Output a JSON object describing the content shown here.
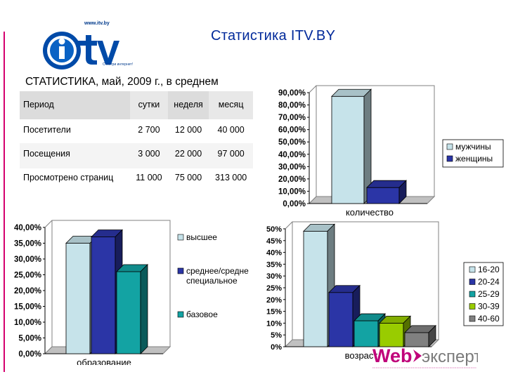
{
  "header": {
    "title": "Статистика  ITV.BY",
    "logo_url": "www.itv.by",
    "logo_slogan": "С-мотри интернет!",
    "logo_text": "iTV.BY"
  },
  "table": {
    "title": "СТАТИСТИКА, май, 2009 г., в среднем",
    "columns": [
      "Период",
      "сутки",
      "неделя",
      "месяц"
    ],
    "rows": [
      {
        "label": "Посетители",
        "values": [
          "2 700",
          "12 000",
          "40 000"
        ]
      },
      {
        "label": "Посещения",
        "values": [
          "3 000",
          "22 000",
          "97 000"
        ]
      },
      {
        "label": "Просмотрено страниц",
        "values": [
          "11 000",
          "75 000",
          "313 000"
        ]
      }
    ]
  },
  "chart_data": [
    {
      "type": "bar",
      "xlabel": "количество",
      "ylim": [
        0,
        90
      ],
      "yticks": [
        "0,00%",
        "10,00%",
        "20,00%",
        "30,00%",
        "40,00%",
        "50,00%",
        "60,00%",
        "70,00%",
        "80,00%",
        "90,00%"
      ],
      "legend_position": "right",
      "series": [
        {
          "name": "мужчины",
          "value": 87,
          "color": "#c6e3ea"
        },
        {
          "name": "женщины",
          "value": 13,
          "color": "#2b35a6"
        }
      ]
    },
    {
      "type": "bar",
      "xlabel": "образование",
      "ylim": [
        0,
        40
      ],
      "yticks": [
        "0,00%",
        "5,00%",
        "10,00%",
        "15,00%",
        "20,00%",
        "25,00%",
        "30,00%",
        "35,00%",
        "40,00%"
      ],
      "legend_position": "right",
      "series": [
        {
          "name": "высшее",
          "value": 35,
          "color": "#c6e3ea"
        },
        {
          "name": "среднее/средне специальное",
          "legend_lines": [
            "среднее/средне",
            "специальное"
          ],
          "value": 37,
          "color": "#2b35a6"
        },
        {
          "name": "базовое",
          "value": 26,
          "color": "#13a3a3"
        }
      ]
    },
    {
      "type": "bar",
      "xlabel": "возраст",
      "ylim": [
        0,
        50
      ],
      "yticks": [
        "0%",
        "5%",
        "10%",
        "15%",
        "20%",
        "25%",
        "30%",
        "35%",
        "40%",
        "45%",
        "50%"
      ],
      "legend_position": "right",
      "series": [
        {
          "name": "16-20",
          "value": 49,
          "color": "#c6e3ea"
        },
        {
          "name": "20-24",
          "value": 23,
          "color": "#2b35a6"
        },
        {
          "name": "25-29",
          "value": 11,
          "color": "#13a3a3"
        },
        {
          "name": "30-39",
          "value": 10,
          "color": "#99cc00"
        },
        {
          "name": "40-60",
          "value": 6,
          "color": "#808080"
        }
      ]
    }
  ],
  "footer": {
    "brand_left": "Web",
    "brand_right": "эксперт"
  }
}
